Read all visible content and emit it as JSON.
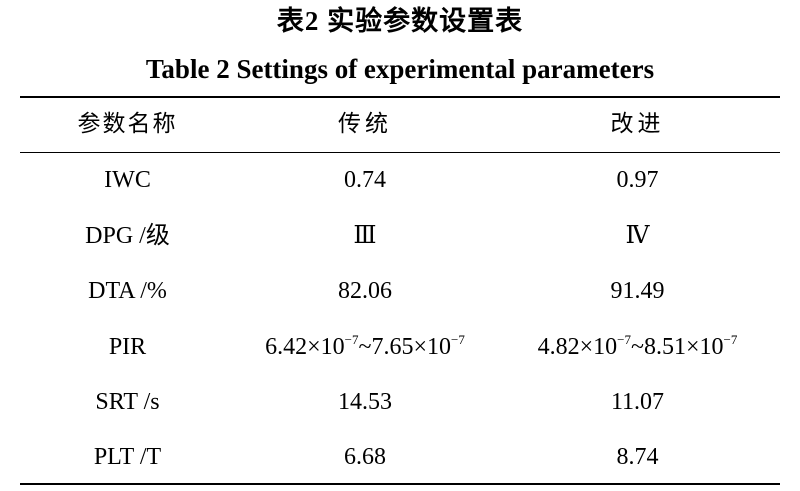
{
  "caption": {
    "title_cn": "表2  实验参数设置表",
    "title_en": "Table 2  Settings of experimental parameters"
  },
  "table": {
    "headers": [
      "参数名称",
      "传统",
      "改进"
    ],
    "rows": [
      {
        "name": "IWC",
        "traditional": "0.74",
        "improved": "0.97"
      },
      {
        "name": "DPG /级",
        "traditional": "Ⅲ",
        "improved": "Ⅳ"
      },
      {
        "name": "DTA /%",
        "traditional": "82.06",
        "improved": "91.49"
      },
      {
        "name": "PIR",
        "traditional": {
          "a": "6.42×10",
          "a_exp": "−7",
          "b": "~7.65×10",
          "b_exp": "−7"
        },
        "improved": {
          "a": "4.82×10",
          "a_exp": "−7",
          "b": "~8.51×10",
          "b_exp": "−7"
        }
      },
      {
        "name": "SRT /s",
        "traditional": "14.53",
        "improved": "11.07"
      },
      {
        "name": "PLT /T",
        "traditional": "6.68",
        "improved": "8.74"
      }
    ]
  }
}
